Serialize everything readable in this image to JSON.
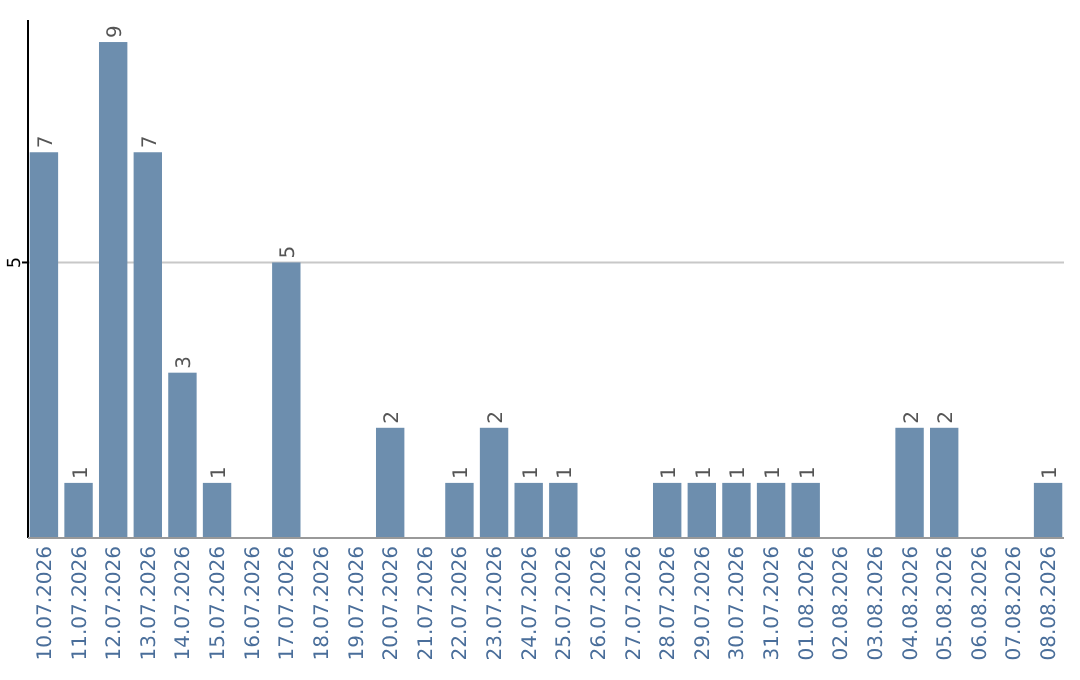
{
  "chart_data": {
    "type": "bar",
    "categories": [
      "10.07.2026",
      "11.07.2026",
      "12.07.2026",
      "13.07.2026",
      "14.07.2026",
      "15.07.2026",
      "16.07.2026",
      "17.07.2026",
      "18.07.2026",
      "19.07.2026",
      "20.07.2026",
      "21.07.2026",
      "22.07.2026",
      "23.07.2026",
      "24.07.2026",
      "25.07.2026",
      "26.07.2026",
      "27.07.2026",
      "28.07.2026",
      "29.07.2026",
      "30.07.2026",
      "31.07.2026",
      "01.08.2026",
      "02.08.2026",
      "03.08.2026",
      "04.08.2026",
      "05.08.2026",
      "06.08.2026",
      "07.08.2026",
      "08.08.2026"
    ],
    "values": [
      7,
      1,
      9,
      7,
      3,
      1,
      0,
      5,
      0,
      0,
      2,
      0,
      1,
      2,
      1,
      1,
      0,
      0,
      1,
      1,
      1,
      1,
      1,
      0,
      0,
      2,
      2,
      0,
      0,
      1
    ],
    "value_labels": [
      "7",
      "1",
      "9",
      "7",
      "3",
      "1",
      null,
      "5",
      null,
      null,
      "2",
      null,
      "1",
      "2",
      "1",
      "1",
      null,
      null,
      "1",
      "1",
      "1",
      "1",
      "1",
      null,
      null,
      "2",
      "2",
      null,
      null,
      "1"
    ],
    "color": "#6d8eae",
    "ylim": [
      0,
      9.4
    ],
    "yticks": [
      5
    ],
    "grid": "y"
  }
}
